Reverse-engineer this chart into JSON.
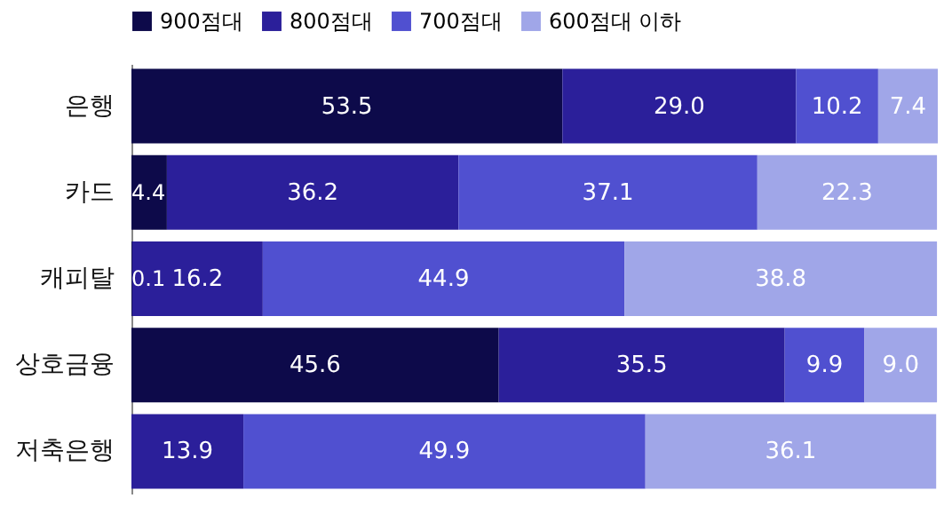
{
  "chart_data": {
    "type": "bar",
    "orientation": "horizontal",
    "stacked": true,
    "legend": "top left",
    "categories": [
      "은행",
      "카드",
      "캐피탈",
      "상호금융",
      "저축은행"
    ],
    "series": [
      {
        "name": "900점대",
        "color": "#0d0a4a",
        "values": [
          53.5,
          4.4,
          0.1,
          45.6,
          null
        ],
        "value_labels": [
          "53.5",
          "4.4",
          "0.1",
          "45.6",
          null
        ]
      },
      {
        "name": "800점대",
        "color": "#2b1f9a",
        "values": [
          29.0,
          36.2,
          16.2,
          35.5,
          13.9
        ],
        "value_labels": [
          "29.0",
          "36.2",
          "16.2",
          "35.5",
          "13.9"
        ]
      },
      {
        "name": "700점대",
        "color": "#5050d0",
        "values": [
          10.2,
          37.1,
          44.9,
          9.9,
          49.9
        ],
        "value_labels": [
          "10.2",
          "37.1",
          "44.9",
          "9.9",
          "49.9"
        ]
      },
      {
        "name": "600점대 이하",
        "color": "#a0a6e8",
        "values": [
          7.4,
          22.3,
          38.8,
          9.0,
          36.1
        ],
        "value_labels": [
          "7.4",
          "22.3",
          "38.8",
          "9.0",
          "36.1"
        ]
      }
    ]
  }
}
